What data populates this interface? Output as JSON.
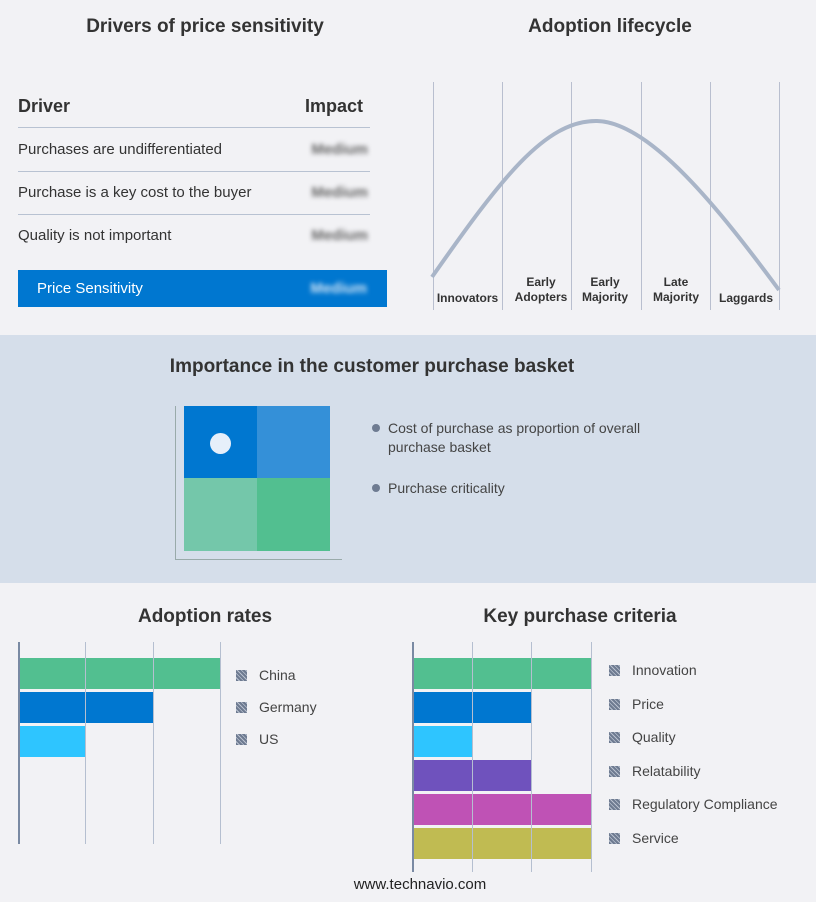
{
  "drivers": {
    "title": "Drivers of price sensitivity",
    "col_driver": "Driver",
    "col_impact": "Impact",
    "rows": [
      {
        "driver": "Purchases are undifferentiated",
        "impact": "Medium"
      },
      {
        "driver": "Purchase is a key cost to the buyer",
        "impact": "Medium"
      },
      {
        "driver": "Quality is not important",
        "impact": "Medium"
      }
    ],
    "summary": {
      "label": "Price Sensitivity",
      "impact": "Medium"
    }
  },
  "lifecycle": {
    "title": "Adoption lifecycle",
    "stages": [
      "Innovators",
      "Early Adopters",
      "Early Majority",
      "Late Majority",
      "Laggards"
    ]
  },
  "basket": {
    "title": "Importance in the customer purchase basket",
    "legend": [
      "Cost of purchase as proportion of overall purchase basket",
      "Purchase criticality"
    ]
  },
  "chart_data": [
    {
      "type": "bar",
      "orientation": "horizontal",
      "title": "Adoption rates",
      "categories": [
        "China",
        "Germany",
        "US"
      ],
      "values": [
        3,
        2,
        1
      ],
      "xlim": [
        0,
        3
      ],
      "grid": true,
      "legend": "right",
      "colors": [
        "#52bf90",
        "#0077d0",
        "#2ec5ff"
      ]
    },
    {
      "type": "bar",
      "orientation": "horizontal",
      "title": "Key purchase criteria",
      "categories": [
        "Innovation",
        "Price",
        "Quality",
        "Relatability",
        "Regulatory Compliance",
        "Service"
      ],
      "values": [
        3,
        2,
        1,
        2,
        3,
        3
      ],
      "xlim": [
        0,
        3
      ],
      "grid": true,
      "legend": "right",
      "colors": [
        "#52bf90",
        "#0077d0",
        "#2ec5ff",
        "#6f52bd",
        "#bf52b5",
        "#c0bb52"
      ]
    }
  ],
  "footer": "www.technavio.com"
}
